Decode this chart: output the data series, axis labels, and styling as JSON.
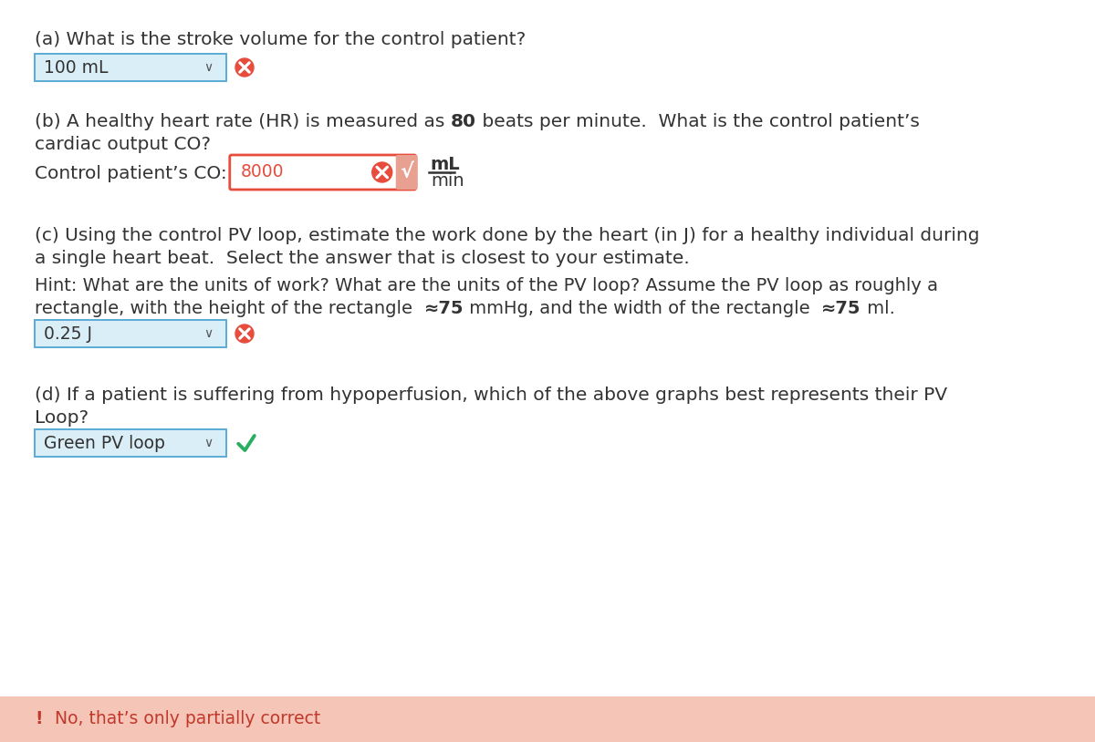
{
  "bg_color": "#ffffff",
  "banner_color": "#f5c5b8",
  "banner_text_color": "#c0392b",
  "q_a_color": "#333333",
  "qa_a_question": "(a) What is the stroke volume for the control patient?",
  "qa_a_answer": "100 mL",
  "qa_a_box_color": "#daeef8",
  "qa_a_box_border": "#5bacd6",
  "qa_b_line1_pre": "(b) A healthy heart rate (HR) is measured as ",
  "qa_b_bold": "80",
  "qa_b_line1_post": " beats per minute.  What is the control patient’s",
  "qa_b_line2": "cardiac output CO?",
  "co_label": "Control patient’s CO:",
  "co_value": "8000",
  "co_fraction_top": "mL",
  "co_fraction_bot": "min",
  "qa_c_line1": "(c) Using the control PV loop, estimate the work done by the heart (in J) for a healthy individual during",
  "qa_c_line2": "a single heart beat.  Select the answer that is closest to your estimate.",
  "qa_c_hint1": "Hint: What are the units of work? What are the units of the PV loop? Assume the PV loop as roughly a",
  "qa_c_hint2_pre": "rectangle, with the height of the rectangle  ",
  "qa_c_hint2_bold1": "≈75",
  "qa_c_hint2_mid": " mmHg, and the width of the rectangle  ",
  "qa_c_hint2_bold2": "≈75",
  "qa_c_hint2_post": " ml.",
  "qa_c_answer": "0.25 J",
  "qa_c_box_color": "#daeef8",
  "qa_c_box_border": "#5bacd6",
  "qa_d_line1": "(d) If a patient is suffering from hypoperfusion, which of the above graphs best represents their PV",
  "qa_d_line2": "Loop?",
  "qa_d_answer": "Green PV loop",
  "qa_d_box_color": "#daeef8",
  "qa_d_box_border": "#5bacd6",
  "box_color": "#daeef8",
  "box_border": "#5bacd6",
  "font_size_q": 14.5,
  "font_size_ans": 13.5,
  "font_size_hint": 14.0,
  "font_size_banner": 13.5
}
